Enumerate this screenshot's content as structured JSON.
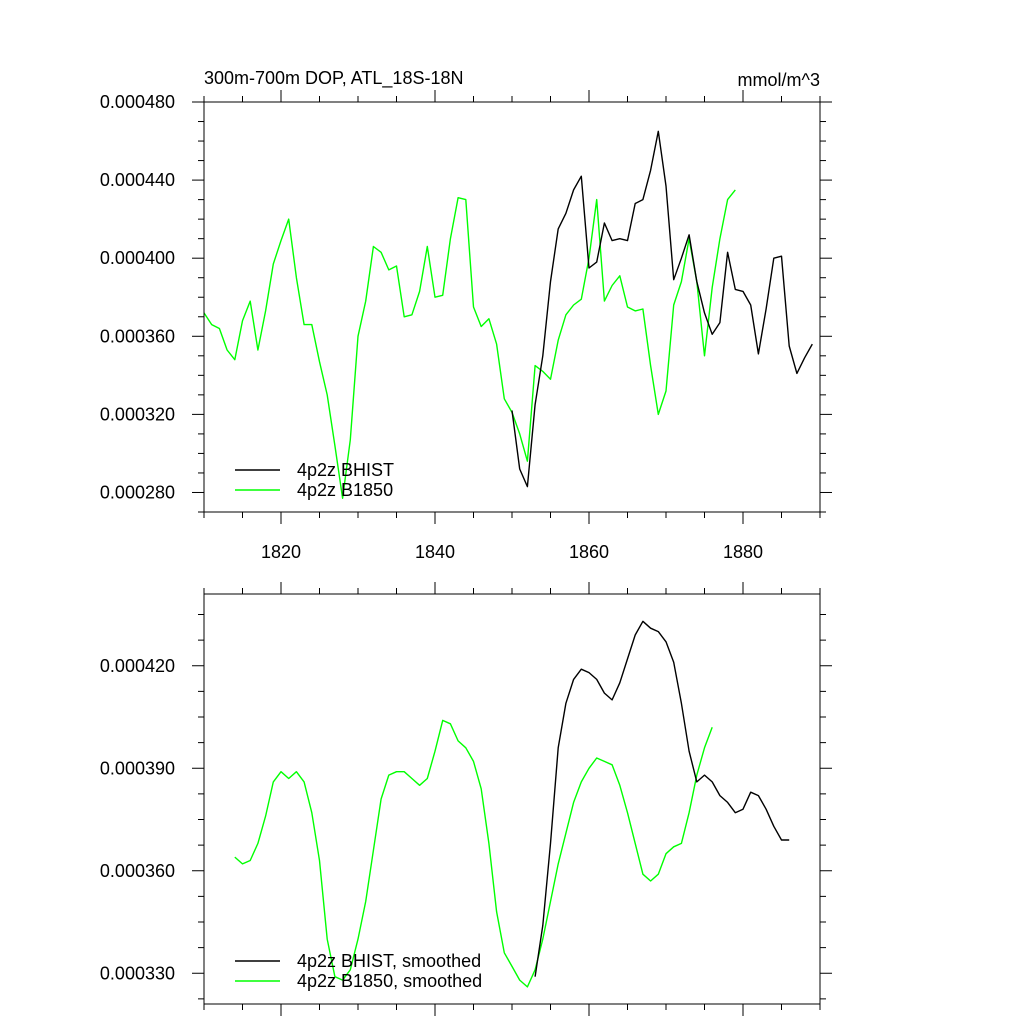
{
  "colors": {
    "bhist": "#000000",
    "b1850": "#00ff00",
    "background": "#ffffff"
  },
  "chart_data": [
    {
      "type": "line",
      "title": "300m-700m DOP, ATL_18S-18N",
      "units": "mmol/m^3",
      "xlim": [
        1810,
        1890
      ],
      "ylim": [
        0.00027,
        0.00048
      ],
      "xticks": [
        1820,
        1840,
        1860,
        1880
      ],
      "xtick_labels": [
        "1820",
        "1840",
        "1860",
        "1880"
      ],
      "yticks": [
        0.00028,
        0.00032,
        0.00036,
        0.0004,
        0.00044,
        0.00048
      ],
      "ytick_labels": [
        "0.000280",
        "0.000320",
        "0.000360",
        "0.000400",
        "0.000440",
        "0.000480"
      ],
      "legend_position": "bottom-left",
      "series": [
        {
          "name": "4p2z BHIST",
          "color": "#000000",
          "x": [
            1850,
            1851,
            1852,
            1853,
            1854,
            1855,
            1856,
            1857,
            1858,
            1859,
            1860,
            1861,
            1862,
            1863,
            1864,
            1865,
            1866,
            1867,
            1868,
            1869,
            1870,
            1871,
            1872,
            1873,
            1874,
            1875,
            1876,
            1877,
            1878,
            1879,
            1880,
            1881,
            1882,
            1883,
            1884,
            1885,
            1886,
            1887,
            1888,
            1889
          ],
          "y": [
            0.000322,
            0.000292,
            0.000283,
            0.000325,
            0.00035,
            0.000388,
            0.000415,
            0.000423,
            0.000435,
            0.000442,
            0.000395,
            0.000398,
            0.000418,
            0.000409,
            0.00041,
            0.000409,
            0.000428,
            0.00043,
            0.000445,
            0.000465,
            0.000437,
            0.000389,
            0.0004,
            0.000412,
            0.000388,
            0.000372,
            0.000361,
            0.000367,
            0.000403,
            0.000384,
            0.000383,
            0.000376,
            0.000351,
            0.000374,
            0.0004,
            0.000401,
            0.000355,
            0.000341,
            0.000349,
            0.000356
          ]
        },
        {
          "name": "4p2z B1850",
          "color": "#00ff00",
          "x": [
            1810,
            1811,
            1812,
            1813,
            1814,
            1815,
            1816,
            1817,
            1818,
            1819,
            1820,
            1821,
            1822,
            1823,
            1824,
            1825,
            1826,
            1827,
            1828,
            1829,
            1830,
            1831,
            1832,
            1833,
            1834,
            1835,
            1836,
            1837,
            1838,
            1839,
            1840,
            1841,
            1842,
            1843,
            1844,
            1845,
            1846,
            1847,
            1848,
            1849,
            1850,
            1851,
            1852,
            1853,
            1854,
            1855,
            1856,
            1857,
            1858,
            1859,
            1860,
            1861,
            1862,
            1863,
            1864,
            1865,
            1866,
            1867,
            1868,
            1869,
            1870,
            1871,
            1872,
            1873,
            1874,
            1875,
            1876,
            1877,
            1878,
            1879
          ],
          "y": [
            0.000372,
            0.000366,
            0.000364,
            0.000353,
            0.000348,
            0.000368,
            0.000378,
            0.000353,
            0.000373,
            0.000397,
            0.000409,
            0.00042,
            0.00039,
            0.000366,
            0.000366,
            0.000347,
            0.00033,
            0.000304,
            0.000277,
            0.000307,
            0.00036,
            0.000378,
            0.000406,
            0.000403,
            0.000394,
            0.000396,
            0.00037,
            0.000371,
            0.000383,
            0.000406,
            0.00038,
            0.000381,
            0.00041,
            0.000431,
            0.00043,
            0.000375,
            0.000365,
            0.000369,
            0.000356,
            0.000328,
            0.000321,
            0.00031,
            0.000296,
            0.000345,
            0.000342,
            0.000338,
            0.000358,
            0.000371,
            0.000376,
            0.000379,
            0.0004,
            0.00043,
            0.000378,
            0.000386,
            0.000391,
            0.000375,
            0.000373,
            0.000374,
            0.000345,
            0.00032,
            0.000332,
            0.000376,
            0.000388,
            0.00041,
            0.000388,
            0.00035,
            0.000385,
            0.00041,
            0.00043,
            0.000435
          ]
        }
      ]
    },
    {
      "type": "line",
      "title": "",
      "xlim": [
        1810,
        1890
      ],
      "ylim": [
        0.000321,
        0.000441
      ],
      "xticks": [
        1820,
        1840,
        1860,
        1880
      ],
      "xtick_labels": [],
      "yticks": [
        0.00033,
        0.00036,
        0.00039,
        0.00042
      ],
      "ytick_labels": [
        "0.000330",
        "0.000360",
        "0.000390",
        "0.000420"
      ],
      "legend_position": "bottom-left",
      "series": [
        {
          "name": "4p2z BHIST, smoothed",
          "color": "#000000",
          "x": [
            1853,
            1854,
            1855,
            1856,
            1857,
            1858,
            1859,
            1860,
            1861,
            1862,
            1863,
            1864,
            1865,
            1866,
            1867,
            1868,
            1869,
            1870,
            1871,
            1872,
            1873,
            1874,
            1875,
            1876,
            1877,
            1878,
            1879,
            1880,
            1881,
            1882,
            1883,
            1884,
            1885,
            1886
          ],
          "y": [
            0.000329,
            0.000344,
            0.000368,
            0.000396,
            0.000409,
            0.000416,
            0.000419,
            0.000418,
            0.000416,
            0.000412,
            0.00041,
            0.000415,
            0.000422,
            0.000429,
            0.000433,
            0.000431,
            0.00043,
            0.000427,
            0.000421,
            0.000409,
            0.000395,
            0.000386,
            0.000388,
            0.000386,
            0.000382,
            0.00038,
            0.000377,
            0.000378,
            0.000383,
            0.000382,
            0.000378,
            0.000373,
            0.000369,
            0.000369
          ]
        },
        {
          "name": "4p2z B1850, smoothed",
          "color": "#00ff00",
          "x": [
            1814,
            1815,
            1816,
            1817,
            1818,
            1819,
            1820,
            1821,
            1822,
            1823,
            1824,
            1825,
            1826,
            1827,
            1828,
            1829,
            1830,
            1831,
            1832,
            1833,
            1834,
            1835,
            1836,
            1837,
            1838,
            1839,
            1840,
            1841,
            1842,
            1843,
            1844,
            1845,
            1846,
            1847,
            1848,
            1849,
            1850,
            1851,
            1852,
            1853,
            1854,
            1855,
            1856,
            1857,
            1858,
            1859,
            1860,
            1861,
            1862,
            1863,
            1864,
            1865,
            1866,
            1867,
            1868,
            1869,
            1870,
            1871,
            1872,
            1873,
            1874,
            1875,
            1876
          ],
          "y": [
            0.000364,
            0.000362,
            0.000363,
            0.000368,
            0.000376,
            0.000386,
            0.000389,
            0.000387,
            0.000389,
            0.000386,
            0.000377,
            0.000363,
            0.00034,
            0.000329,
            0.000328,
            0.000331,
            0.00034,
            0.000351,
            0.000366,
            0.000381,
            0.000388,
            0.000389,
            0.000389,
            0.000387,
            0.000385,
            0.000387,
            0.000395,
            0.000404,
            0.000403,
            0.000398,
            0.000396,
            0.000392,
            0.000384,
            0.000368,
            0.000348,
            0.000336,
            0.000332,
            0.000328,
            0.000326,
            0.000331,
            0.00034,
            0.000351,
            0.000362,
            0.000371,
            0.00038,
            0.000386,
            0.00039,
            0.000393,
            0.000392,
            0.000391,
            0.000385,
            0.000377,
            0.000368,
            0.000359,
            0.000357,
            0.000359,
            0.000365,
            0.000367,
            0.000368,
            0.000377,
            0.000388,
            0.000396,
            0.000402
          ]
        }
      ]
    }
  ]
}
